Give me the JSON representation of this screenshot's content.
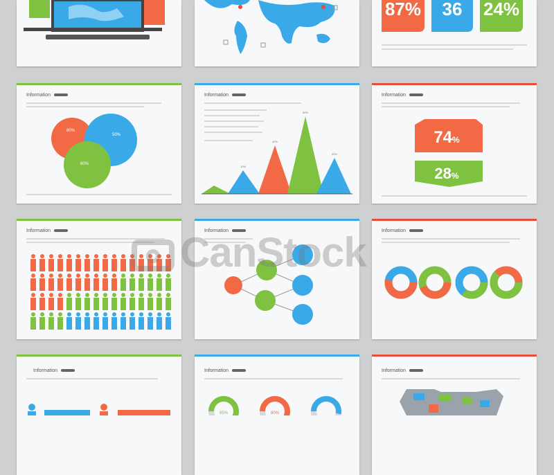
{
  "watermark": "CanStock",
  "heading": "Information",
  "colors": {
    "orange": "#f26a45",
    "blue": "#3aa9e8",
    "green": "#7fc242",
    "red": "#e74c3c"
  },
  "row1": {
    "stats": [
      "87%",
      "36",
      "24%"
    ]
  },
  "row2": {
    "venn": [
      "80%",
      "50%",
      "60%"
    ],
    "tri_labels": [
      "10%",
      "40%",
      "80%",
      "20%"
    ],
    "hex_top": "74",
    "hex_bottom": "28",
    "pct_sign": "%"
  },
  "row4": {
    "donut_labels": [
      "65%",
      "80%",
      ""
    ]
  }
}
